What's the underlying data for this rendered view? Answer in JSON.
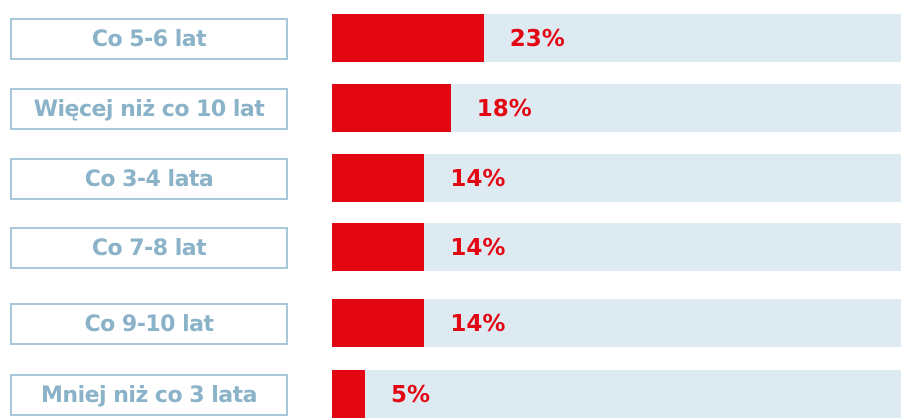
{
  "chart_data": {
    "type": "bar",
    "orientation": "horizontal",
    "categories": [
      "Co 5-6 lat",
      "Więcej niż co 10 lat",
      "Co 3-4 lata",
      "Co 7-8 lat",
      "Co 9-10 lat",
      "Mniej niż co 3 lata"
    ],
    "values": [
      23,
      18,
      14,
      14,
      14,
      5
    ],
    "value_labels": [
      "23%",
      "18%",
      "14%",
      "14%",
      "14%",
      "5%"
    ],
    "color": "#e30613"
  }
}
